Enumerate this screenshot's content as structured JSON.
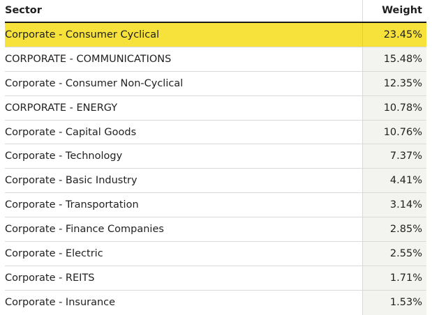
{
  "table": {
    "headers": {
      "sector": "Sector",
      "weight": "Weight"
    },
    "rows": [
      {
        "sector": "Corporate - Consumer Cyclical",
        "weight": "23.45%"
      },
      {
        "sector": "CORPORATE - COMMUNICATIONS",
        "weight": "15.48%"
      },
      {
        "sector": "Corporate - Consumer Non-Cyclical",
        "weight": "12.35%"
      },
      {
        "sector": "CORPORATE - ENERGY",
        "weight": "10.78%"
      },
      {
        "sector": "Corporate - Capital Goods",
        "weight": "10.76%"
      },
      {
        "sector": "Corporate - Technology",
        "weight": "7.37%"
      },
      {
        "sector": "Corporate - Basic Industry",
        "weight": "4.41%"
      },
      {
        "sector": "Corporate - Transportation",
        "weight": "3.14%"
      },
      {
        "sector": "Corporate - Finance Companies",
        "weight": "2.85%"
      },
      {
        "sector": "Corporate - Electric",
        "weight": "2.55%"
      },
      {
        "sector": "Corporate - REITS",
        "weight": "1.71%"
      },
      {
        "sector": "Corporate - Insurance",
        "weight": "1.53%"
      }
    ],
    "highlight_color": "#f6e23a"
  }
}
